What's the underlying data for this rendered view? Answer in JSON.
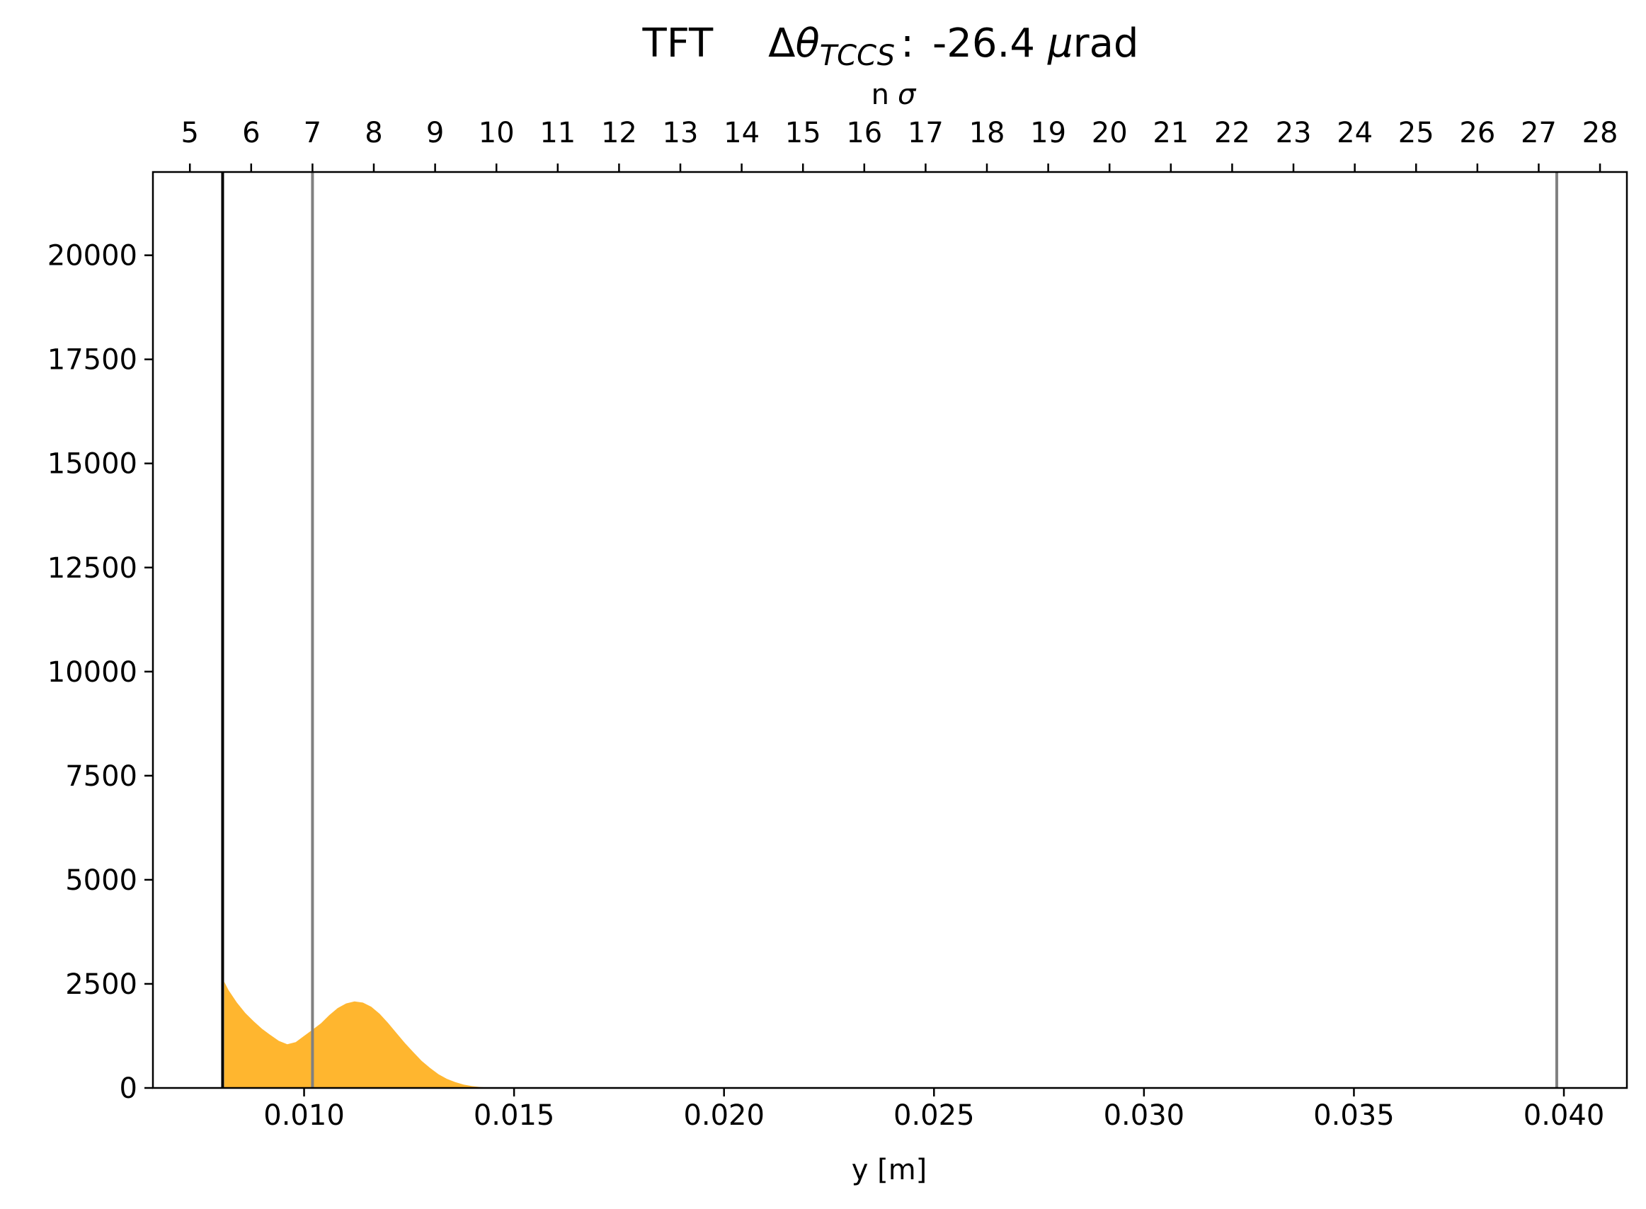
{
  "chart_data": {
    "type": "area",
    "title": {
      "prefix": "TFT",
      "delta": "Δ",
      "theta": "θ",
      "subscript": "TCCS",
      "separator": ":",
      "value": "-26.4",
      "mu": "μ",
      "unit": "rad"
    },
    "xlabel": "y [m]",
    "top_xlabel_n": "n",
    "top_xlabel_sigma": "σ",
    "ylabel": "",
    "xlim": [
      0.0064,
      0.0415
    ],
    "ylim": [
      0,
      22000
    ],
    "x_ticks": [
      0.01,
      0.015,
      0.02,
      0.025,
      0.03,
      0.035,
      0.04
    ],
    "x_tick_labels": [
      "0.010",
      "0.015",
      "0.020",
      "0.025",
      "0.030",
      "0.035",
      "0.040"
    ],
    "y_ticks": [
      0,
      2500,
      5000,
      7500,
      10000,
      12500,
      15000,
      17500,
      20000
    ],
    "y_tick_labels": [
      "0",
      "2500",
      "5000",
      "7500",
      "10000",
      "12500",
      "15000",
      "17500",
      "20000"
    ],
    "top_ticks_y": [
      0.00728,
      0.00874,
      0.0102,
      0.01166,
      0.01312,
      0.01458,
      0.01604,
      0.0175,
      0.01896,
      0.02042,
      0.02188,
      0.02334,
      0.0248,
      0.02626,
      0.02772,
      0.02918,
      0.03064,
      0.0321,
      0.03356,
      0.03502,
      0.03648,
      0.03794,
      0.0394,
      0.04086
    ],
    "top_tick_labels": [
      "5",
      "6",
      "7",
      "8",
      "9",
      "10",
      "11",
      "12",
      "13",
      "14",
      "15",
      "16",
      "17",
      "18",
      "19",
      "20",
      "21",
      "22",
      "23",
      "24",
      "25",
      "26",
      "27",
      "28"
    ],
    "vertical_lines": [
      {
        "x": 0.00806,
        "color": "#000000"
      },
      {
        "x": 0.0102,
        "color": "#808080"
      },
      {
        "x": 0.03983,
        "color": "#808080"
      }
    ],
    "series": [
      {
        "color": "#FFB62F",
        "x": [
          0.0081,
          0.0082,
          0.0084,
          0.0086,
          0.0088,
          0.009,
          0.0092,
          0.0094,
          0.0096,
          0.0098,
          0.01,
          0.0102,
          0.0104,
          0.0106,
          0.0108,
          0.011,
          0.0112,
          0.0114,
          0.0116,
          0.0118,
          0.012,
          0.0122,
          0.0124,
          0.0126,
          0.0128,
          0.013,
          0.0132,
          0.0134,
          0.0136,
          0.0138,
          0.014,
          0.0142,
          0.0144,
          0.0146,
          0.0148,
          0.015
        ],
        "values": [
          2550,
          2350,
          2050,
          1800,
          1600,
          1420,
          1270,
          1130,
          1050,
          1100,
          1250,
          1400,
          1550,
          1750,
          1920,
          2030,
          2080,
          2050,
          1950,
          1780,
          1560,
          1320,
          1080,
          860,
          650,
          480,
          330,
          220,
          140,
          80,
          45,
          22,
          10,
          4,
          1,
          0
        ]
      }
    ]
  }
}
